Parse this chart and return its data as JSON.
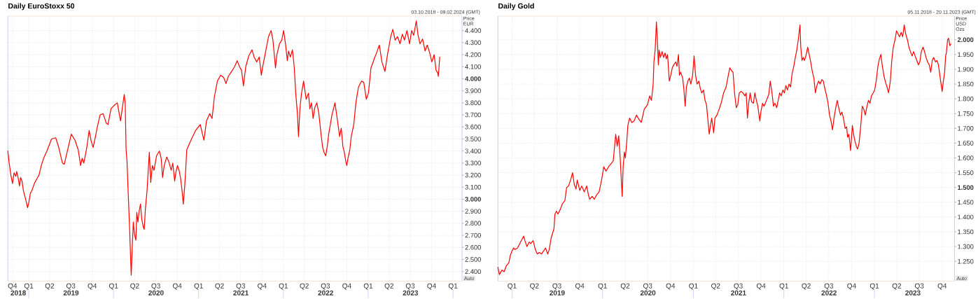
{
  "chart_data": [
    {
      "type": "line",
      "title": "Daily EuroStoxx 50",
      "subtitle": "03.10.2018 - 09.02.2024 (GMT)",
      "ylabel": "Price EUR",
      "annotations": [
        "Auto"
      ],
      "color": "#ff0000",
      "x": [
        "2018-10-03",
        "2018-10-08",
        "2018-10-16",
        "2018-10-23",
        "2018-10-30",
        "2018-11-06",
        "2018-11-10",
        "2018-11-16",
        "2018-11-22",
        "2018-11-27",
        "2018-12-03",
        "2018-12-09",
        "2018-12-16",
        "2018-12-27",
        "2019-01-01",
        "2019-01-08",
        "2019-01-14",
        "2019-01-25",
        "2019-02-05",
        "2019-02-14",
        "2019-02-24",
        "2019-03-06",
        "2019-03-20",
        "2019-04-09",
        "2019-04-27",
        "2019-05-10",
        "2019-05-26",
        "2019-06-03",
        "2019-06-15",
        "2019-07-03",
        "2019-07-19",
        "2019-08-02",
        "2019-08-12",
        "2019-08-19",
        "2019-08-26",
        "2019-09-07",
        "2019-09-18",
        "2019-09-27",
        "2019-10-05",
        "2019-10-15",
        "2019-10-22",
        "2019-11-04",
        "2019-11-17",
        "2019-12-01",
        "2019-12-08",
        "2019-12-21",
        "2020-01-04",
        "2020-01-17",
        "2020-01-31",
        "2020-02-16",
        "2020-02-20",
        "2020-02-24",
        "2020-02-28",
        "2020-03-04",
        "2020-03-10",
        "2020-03-14",
        "2020-03-17",
        "2020-03-21",
        "2020-03-26",
        "2020-03-31",
        "2020-04-06",
        "2020-04-10",
        "2020-04-15",
        "2020-04-20",
        "2020-04-26",
        "2020-05-01",
        "2020-05-08",
        "2020-05-12",
        "2020-05-17",
        "2020-05-24",
        "2020-06-03",
        "2020-06-09",
        "2020-06-16",
        "2020-06-23",
        "2020-07-04",
        "2020-07-16",
        "2020-07-24",
        "2020-07-30",
        "2020-08-06",
        "2020-08-17",
        "2020-08-26",
        "2020-09-05",
        "2020-09-12",
        "2020-09-20",
        "2020-09-25",
        "2020-10-02",
        "2020-10-09",
        "2020-10-15",
        "2020-10-22",
        "2020-10-27",
        "2020-11-02",
        "2020-11-07",
        "2020-11-11",
        "2020-11-29",
        "2020-12-19",
        "2021-01-08",
        "2021-01-24",
        "2021-02-04",
        "2021-02-18",
        "2021-02-28",
        "2021-03-10",
        "2021-03-23",
        "2021-04-06",
        "2021-04-19",
        "2021-04-29",
        "2021-05-09",
        "2021-05-23",
        "2021-06-05",
        "2021-06-16",
        "2021-06-26",
        "2021-07-05",
        "2021-07-13",
        "2021-07-23",
        "2021-08-05",
        "2021-08-19",
        "2021-08-28",
        "2021-09-08",
        "2021-09-19",
        "2021-09-28",
        "2021-10-05",
        "2021-10-18",
        "2021-10-29",
        "2021-11-09",
        "2021-11-17",
        "2021-11-28",
        "2021-12-04",
        "2021-12-15",
        "2021-12-25",
        "2022-01-02",
        "2022-01-10",
        "2022-01-18",
        "2022-01-23",
        "2022-01-31",
        "2022-02-09",
        "2022-02-17",
        "2022-02-23",
        "2022-03-02",
        "2022-03-07",
        "2022-03-13",
        "2022-03-20",
        "2022-03-29",
        "2022-04-09",
        "2022-04-19",
        "2022-04-25",
        "2022-05-02",
        "2022-05-09",
        "2022-05-16",
        "2022-05-25",
        "2022-06-02",
        "2022-06-12",
        "2022-06-19",
        "2022-06-25",
        "2022-07-02",
        "2022-07-09",
        "2022-07-15",
        "2022-07-29",
        "2022-08-11",
        "2022-08-22",
        "2022-08-31",
        "2022-09-07",
        "2022-09-14",
        "2022-09-20",
        "2022-09-27",
        "2022-10-01",
        "2022-10-06",
        "2022-10-14",
        "2022-10-20",
        "2022-10-31",
        "2022-11-09",
        "2022-11-20",
        "2022-12-03",
        "2022-12-13",
        "2022-12-24",
        "2023-01-02",
        "2023-01-13",
        "2023-01-26",
        "2023-02-09",
        "2023-02-18",
        "2023-03-01",
        "2023-03-14",
        "2023-03-25",
        "2023-04-08",
        "2023-04-17",
        "2023-04-27",
        "2023-05-07",
        "2023-05-18",
        "2023-05-28",
        "2023-06-06",
        "2023-06-17",
        "2023-06-28",
        "2023-07-07",
        "2023-07-16",
        "2023-07-27",
        "2023-08-03",
        "2023-08-12",
        "2023-08-23",
        "2023-09-03",
        "2023-09-12",
        "2023-09-22",
        "2023-10-02",
        "2023-10-12",
        "2023-10-20",
        "2023-10-27",
        "2023-10-30",
        "2023-11-05"
      ],
      "values": [
        3400,
        3310,
        3200,
        3130,
        3220,
        3190,
        3230,
        3180,
        3110,
        3180,
        3150,
        3070,
        3020,
        2930,
        2970,
        3050,
        3070,
        3130,
        3170,
        3200,
        3280,
        3340,
        3400,
        3500,
        3510,
        3430,
        3300,
        3290,
        3390,
        3540,
        3490,
        3410,
        3280,
        3340,
        3300,
        3420,
        3570,
        3480,
        3430,
        3520,
        3590,
        3700,
        3710,
        3630,
        3620,
        3750,
        3780,
        3800,
        3650,
        3870,
        3800,
        3410,
        3310,
        3050,
        2760,
        2530,
        2370,
        2580,
        2810,
        2710,
        2660,
        2890,
        2810,
        2900,
        2960,
        2840,
        2770,
        2750,
        2920,
        3070,
        3390,
        3140,
        3280,
        3240,
        3360,
        3400,
        3340,
        3180,
        3280,
        3350,
        3310,
        3240,
        3300,
        3150,
        3220,
        3280,
        3240,
        3180,
        3070,
        2960,
        3100,
        3260,
        3410,
        3490,
        3570,
        3620,
        3490,
        3650,
        3710,
        3670,
        3850,
        3980,
        4030,
        4010,
        3960,
        4020,
        4060,
        4100,
        4150,
        4100,
        4070,
        3940,
        4100,
        4190,
        4240,
        4180,
        4140,
        4180,
        4030,
        4110,
        4240,
        4350,
        4400,
        4320,
        4090,
        4200,
        4290,
        4320,
        4400,
        4290,
        4150,
        4230,
        4180,
        4240,
        4090,
        3880,
        3720,
        3520,
        3750,
        3880,
        3980,
        3830,
        3880,
        3750,
        3800,
        3670,
        3760,
        3800,
        3720,
        3540,
        3430,
        3390,
        3360,
        3440,
        3540,
        3700,
        3800,
        3650,
        3520,
        3590,
        3440,
        3390,
        3310,
        3280,
        3340,
        3410,
        3520,
        3620,
        3800,
        3930,
        3980,
        3970,
        3830,
        3880,
        4090,
        4160,
        4230,
        4280,
        4140,
        4060,
        4200,
        4350,
        4410,
        4320,
        4350,
        4290,
        4370,
        4320,
        4400,
        4290,
        4400,
        4360,
        4480,
        4370,
        4290,
        4330,
        4230,
        4280,
        4220,
        4140,
        4200,
        4070,
        4050,
        4020,
        4180
      ],
      "xlim": [
        "2018-10-03",
        "2024-02-09"
      ],
      "xticks": [
        {
          "value": "2018-10-23",
          "label": "Q4"
        },
        {
          "value": "2019-01-01",
          "label": "Q1"
        },
        {
          "value": "2019-04-01",
          "label": "Q2"
        },
        {
          "value": "2019-07-01",
          "label": "Q3"
        },
        {
          "value": "2019-10-01",
          "label": "Q4"
        },
        {
          "value": "2020-01-01",
          "label": "Q1"
        },
        {
          "value": "2020-04-01",
          "label": "Q2"
        },
        {
          "value": "2020-07-01",
          "label": "Q3"
        },
        {
          "value": "2020-10-01",
          "label": "Q4"
        },
        {
          "value": "2021-01-01",
          "label": "Q1"
        },
        {
          "value": "2021-04-01",
          "label": "Q2"
        },
        {
          "value": "2021-07-01",
          "label": "Q3"
        },
        {
          "value": "2021-10-01",
          "label": "Q4"
        },
        {
          "value": "2022-01-01",
          "label": "Q1"
        },
        {
          "value": "2022-04-01",
          "label": "Q2"
        },
        {
          "value": "2022-07-01",
          "label": "Q3"
        },
        {
          "value": "2022-10-01",
          "label": "Q4"
        },
        {
          "value": "2023-01-01",
          "label": "Q1"
        },
        {
          "value": "2023-04-01",
          "label": "Q2"
        },
        {
          "value": "2023-07-01",
          "label": "Q3"
        },
        {
          "value": "2023-10-01",
          "label": "Q4"
        },
        {
          "value": "2024-01-01",
          "label": "Q1"
        }
      ],
      "x2lim": [
        "2018-10-03",
        "2024-02-09"
      ],
      "x2ticks": [
        {
          "value": "2018-11-17",
          "label": "2018"
        },
        {
          "value": "2019-01-01",
          "label": null
        },
        {
          "value": "2019-07-02",
          "label": "2019"
        },
        {
          "value": "2020-01-01",
          "label": null
        },
        {
          "value": "2020-07-02",
          "label": "2020"
        },
        {
          "value": "2021-01-01",
          "label": null
        },
        {
          "value": "2021-07-02",
          "label": "2021"
        },
        {
          "value": "2022-01-01",
          "label": null
        },
        {
          "value": "2022-07-02",
          "label": "2022"
        },
        {
          "value": "2023-01-01",
          "label": null
        },
        {
          "value": "2023-07-02",
          "label": "2023"
        },
        {
          "value": "2024-01-01",
          "label": null
        }
      ],
      "ylim": [
        2320,
        4520
      ],
      "yticks": [
        {
          "value": 2400,
          "label": "2.400"
        },
        {
          "value": 2500,
          "label": "2.500"
        },
        {
          "value": 2600,
          "label": "2.600"
        },
        {
          "value": 2700,
          "label": "2.700"
        },
        {
          "value": 2800,
          "label": "2.800"
        },
        {
          "value": 2900,
          "label": "2.900"
        },
        {
          "value": 3000,
          "label": "**3.000**"
        },
        {
          "value": 3100,
          "label": "3.100"
        },
        {
          "value": 3200,
          "label": "3.200"
        },
        {
          "value": 3300,
          "label": "3.300"
        },
        {
          "value": 3400,
          "label": "3.400"
        },
        {
          "value": 3500,
          "label": "3.500"
        },
        {
          "value": 3600,
          "label": "3.600"
        },
        {
          "value": 3700,
          "label": "3.700"
        },
        {
          "value": 3800,
          "label": "3.800"
        },
        {
          "value": 3900,
          "label": "3.900"
        },
        {
          "value": 4000,
          "label": "**4.000**"
        },
        {
          "value": 4100,
          "label": "4.100"
        },
        {
          "value": 4200,
          "label": "4.200"
        },
        {
          "value": 4300,
          "label": "4.300"
        },
        {
          "value": 4400,
          "label": "4.400"
        }
      ],
      "grid": true
    },
    {
      "type": "line",
      "title": "Daily Gold",
      "subtitle": "05.11.2018 - 20.11.2023 (GMT)",
      "ylabel": "Price USD Ozs",
      "annotations": [
        "Auto"
      ],
      "color": "#ff0000",
      "x": [
        "2018-11-05",
        "2018-11-11",
        "2018-11-21",
        "2018-11-30",
        "2018-12-09",
        "2018-12-19",
        "2018-12-25",
        "2019-01-01",
        "2019-01-07",
        "2019-01-13",
        "2019-01-23",
        "2019-02-01",
        "2019-02-07",
        "2019-02-17",
        "2019-02-22",
        "2019-03-02",
        "2019-03-11",
        "2019-03-17",
        "2019-03-27",
        "2019-04-05",
        "2019-04-13",
        "2019-04-21",
        "2019-04-30",
        "2019-05-16",
        "2019-05-25",
        "2019-05-31",
        "2019-06-08",
        "2019-06-19",
        "2019-06-23",
        "2019-06-29",
        "2019-07-05",
        "2019-07-14",
        "2019-07-23",
        "2019-08-02",
        "2019-08-09",
        "2019-08-17",
        "2019-08-25",
        "2019-09-02",
        "2019-09-09",
        "2019-09-16",
        "2019-09-21",
        "2019-10-01",
        "2019-10-09",
        "2019-10-19",
        "2019-10-29",
        "2019-11-05",
        "2019-11-10",
        "2019-11-20",
        "2019-11-29",
        "2019-12-08",
        "2019-12-18",
        "2019-12-28",
        "2020-01-06",
        "2020-01-15",
        "2020-01-25",
        "2020-02-04",
        "2020-02-13",
        "2020-02-23",
        "2020-02-29",
        "2020-03-06",
        "2020-03-12",
        "2020-03-20",
        "2020-03-24",
        "2020-03-29",
        "2020-04-02",
        "2020-04-07",
        "2020-04-12",
        "2020-04-19",
        "2020-04-28",
        "2020-05-07",
        "2020-05-17",
        "2020-05-27",
        "2020-06-05",
        "2020-06-17",
        "2020-06-30",
        "2020-07-09",
        "2020-07-16",
        "2020-07-23",
        "2020-07-26",
        "2020-07-31",
        "2020-08-05",
        "2020-08-09",
        "2020-08-13",
        "2020-08-16",
        "2020-08-21",
        "2020-08-28",
        "2020-09-03",
        "2020-09-09",
        "2020-09-14",
        "2020-09-19",
        "2020-09-26",
        "2020-10-02",
        "2020-10-08",
        "2020-10-14",
        "2020-10-22",
        "2020-10-27",
        "2020-11-02",
        "2020-11-06",
        "2020-11-11",
        "2020-11-19",
        "2020-11-24",
        "2020-11-29",
        "2020-12-04",
        "2020-12-10",
        "2020-12-16",
        "2020-12-22",
        "2020-12-29",
        "2021-01-04",
        "2021-01-10",
        "2021-01-16",
        "2021-01-23",
        "2021-01-29",
        "2021-02-04",
        "2021-02-11",
        "2021-02-17",
        "2021-02-23",
        "2021-03-01",
        "2021-03-06",
        "2021-03-11",
        "2021-03-16",
        "2021-03-24",
        "2021-03-29",
        "2021-04-06",
        "2021-04-15",
        "2021-04-23",
        "2021-05-03",
        "2021-05-13",
        "2021-05-22",
        "2021-05-28",
        "2021-06-04",
        "2021-06-10",
        "2021-06-16",
        "2021-06-23",
        "2021-06-29",
        "2021-07-05",
        "2021-07-13",
        "2021-07-20",
        "2021-07-28",
        "2021-08-02",
        "2021-08-07",
        "2021-08-12",
        "2021-08-18",
        "2021-08-24",
        "2021-08-31",
        "2021-09-06",
        "2021-09-12",
        "2021-09-18",
        "2021-09-26",
        "2021-10-01",
        "2021-10-07",
        "2021-10-13",
        "2021-10-23",
        "2021-11-01",
        "2021-11-07",
        "2021-11-14",
        "2021-11-20",
        "2021-11-26",
        "2021-12-03",
        "2021-12-09",
        "2021-12-15",
        "2021-12-21",
        "2021-12-28",
        "2022-01-03",
        "2022-01-09",
        "2022-01-15",
        "2022-01-22",
        "2022-01-28",
        "2022-02-03",
        "2022-02-10",
        "2022-02-16",
        "2022-02-22",
        "2022-02-28",
        "2022-03-07",
        "2022-03-10",
        "2022-03-15",
        "2022-03-20",
        "2022-03-25",
        "2022-04-01",
        "2022-04-07",
        "2022-04-13",
        "2022-04-19",
        "2022-04-25",
        "2022-05-02",
        "2022-05-08",
        "2022-05-14",
        "2022-05-21",
        "2022-05-27",
        "2022-06-03",
        "2022-06-09",
        "2022-06-15",
        "2022-06-21",
        "2022-06-28",
        "2022-07-04",
        "2022-07-10",
        "2022-07-16",
        "2022-07-22",
        "2022-07-29",
        "2022-08-04",
        "2022-08-10",
        "2022-08-17",
        "2022-08-23",
        "2022-08-29",
        "2022-09-05",
        "2022-09-11",
        "2022-09-15",
        "2022-09-20",
        "2022-09-27",
        "2022-10-04",
        "2022-10-09",
        "2022-10-15",
        "2022-10-20",
        "2022-10-25",
        "2022-10-31",
        "2022-11-07",
        "2022-11-13",
        "2022-11-19",
        "2022-11-25",
        "2022-12-02",
        "2022-12-08",
        "2022-12-14",
        "2022-12-20",
        "2022-12-27",
        "2023-01-02",
        "2023-01-08",
        "2023-01-15",
        "2023-01-21",
        "2023-01-27",
        "2023-02-02",
        "2023-02-09",
        "2023-02-15",
        "2023-02-21",
        "2023-02-27",
        "2023-03-06",
        "2023-03-12",
        "2023-03-18",
        "2023-03-25",
        "2023-03-31",
        "2023-04-06",
        "2023-04-12",
        "2023-04-19",
        "2023-04-25",
        "2023-05-01",
        "2023-05-07",
        "2023-05-14",
        "2023-05-20",
        "2023-05-26",
        "2023-06-02",
        "2023-06-08",
        "2023-06-14",
        "2023-06-21",
        "2023-06-27",
        "2023-07-03",
        "2023-07-09",
        "2023-07-16",
        "2023-07-22",
        "2023-07-28",
        "2023-08-03",
        "2023-08-10",
        "2023-08-16",
        "2023-08-22",
        "2023-08-28",
        "2023-09-04",
        "2023-09-10",
        "2023-09-16",
        "2023-09-25",
        "2023-10-01",
        "2023-10-06",
        "2023-10-11",
        "2023-10-15",
        "2023-10-18",
        "2023-10-23",
        "2023-10-27",
        "2023-11-01",
        "2023-11-05"
      ],
      "values": [
        1230,
        1205,
        1220,
        1215,
        1235,
        1245,
        1270,
        1285,
        1295,
        1290,
        1295,
        1310,
        1320,
        1335,
        1320,
        1300,
        1315,
        1310,
        1320,
        1290,
        1275,
        1280,
        1275,
        1295,
        1275,
        1290,
        1330,
        1360,
        1410,
        1420,
        1410,
        1425,
        1445,
        1455,
        1500,
        1505,
        1525,
        1550,
        1510,
        1495,
        1525,
        1490,
        1505,
        1485,
        1505,
        1475,
        1460,
        1470,
        1460,
        1475,
        1485,
        1525,
        1570,
        1555,
        1570,
        1580,
        1590,
        1680,
        1640,
        1675,
        1600,
        1470,
        1570,
        1620,
        1600,
        1650,
        1710,
        1735,
        1720,
        1725,
        1745,
        1730,
        1720,
        1765,
        1780,
        1810,
        1795,
        1850,
        1925,
        1965,
        2060,
        2000,
        1915,
        1965,
        1940,
        1960,
        1940,
        1955,
        1935,
        1950,
        1860,
        1880,
        1905,
        1915,
        1925,
        1910,
        1950,
        1880,
        1890,
        1870,
        1830,
        1775,
        1840,
        1860,
        1870,
        1850,
        1880,
        1945,
        1880,
        1850,
        1860,
        1835,
        1820,
        1830,
        1795,
        1780,
        1725,
        1680,
        1710,
        1735,
        1685,
        1735,
        1745,
        1765,
        1785,
        1820,
        1840,
        1880,
        1905,
        1895,
        1890,
        1820,
        1770,
        1780,
        1820,
        1825,
        1820,
        1810,
        1820,
        1735,
        1785,
        1820,
        1790,
        1785,
        1820,
        1795,
        1775,
        1725,
        1760,
        1785,
        1775,
        1795,
        1815,
        1860,
        1820,
        1775,
        1785,
        1770,
        1795,
        1820,
        1810,
        1830,
        1820,
        1845,
        1830,
        1850,
        1840,
        1885,
        1910,
        1940,
        1965,
        2000,
        2050,
        1975,
        1930,
        1940,
        1930,
        1950,
        1975,
        1950,
        1925,
        1895,
        1870,
        1820,
        1845,
        1860,
        1850,
        1865,
        1860,
        1835,
        1815,
        1785,
        1745,
        1725,
        1695,
        1735,
        1770,
        1795,
        1770,
        1745,
        1755,
        1735,
        1700,
        1705,
        1670,
        1680,
        1625,
        1710,
        1680,
        1655,
        1640,
        1630,
        1650,
        1710,
        1775,
        1765,
        1745,
        1775,
        1795,
        1785,
        1810,
        1820,
        1830,
        1860,
        1910,
        1935,
        1950,
        1910,
        1875,
        1855,
        1840,
        1820,
        1860,
        1930,
        1975,
        2000,
        2030,
        2020,
        2010,
        2025,
        2010,
        2050,
        2020,
        2000,
        1975,
        1960,
        1945,
        1960,
        1945,
        1930,
        1915,
        1925,
        1960,
        1975,
        1960,
        1940,
        1925,
        1915,
        1890,
        1930,
        1940,
        1925,
        1930,
        1915,
        1860,
        1825,
        1860,
        1890,
        1945,
        1955,
        2000,
        2005,
        1980,
        1985
      ],
      "xlim": [
        "2018-11-05",
        "2023-11-20"
      ],
      "xticks": [
        {
          "value": "2019-01-01",
          "label": "Q1"
        },
        {
          "value": "2019-04-01",
          "label": "Q2"
        },
        {
          "value": "2019-07-01",
          "label": "Q3"
        },
        {
          "value": "2019-10-01",
          "label": "Q4"
        },
        {
          "value": "2020-01-01",
          "label": "Q1"
        },
        {
          "value": "2020-04-01",
          "label": "Q2"
        },
        {
          "value": "2020-07-01",
          "label": "Q3"
        },
        {
          "value": "2020-10-01",
          "label": "Q4"
        },
        {
          "value": "2021-01-01",
          "label": "Q1"
        },
        {
          "value": "2021-04-01",
          "label": "Q2"
        },
        {
          "value": "2021-07-01",
          "label": "Q3"
        },
        {
          "value": "2021-10-01",
          "label": "Q4"
        },
        {
          "value": "2022-01-01",
          "label": "Q1"
        },
        {
          "value": "2022-04-01",
          "label": "Q2"
        },
        {
          "value": "2022-07-01",
          "label": "Q3"
        },
        {
          "value": "2022-10-01",
          "label": "Q4"
        },
        {
          "value": "2023-01-01",
          "label": "Q1"
        },
        {
          "value": "2023-04-01",
          "label": "Q2"
        },
        {
          "value": "2023-07-01",
          "label": "Q3"
        },
        {
          "value": "2023-10-01",
          "label": "Q4"
        }
      ],
      "x2lim": [
        "2018-11-05",
        "2023-11-20"
      ],
      "x2ticks": [
        {
          "value": "2019-01-01",
          "label": null
        },
        {
          "value": "2019-07-02",
          "label": "2019"
        },
        {
          "value": "2020-01-01",
          "label": null
        },
        {
          "value": "2020-07-02",
          "label": "2020"
        },
        {
          "value": "2021-01-01",
          "label": null
        },
        {
          "value": "2021-07-02",
          "label": "2021"
        },
        {
          "value": "2022-01-01",
          "label": null
        },
        {
          "value": "2022-07-02",
          "label": "2022"
        },
        {
          "value": "2023-01-01",
          "label": null
        },
        {
          "value": "2023-06-05",
          "label": "2023"
        }
      ],
      "ylim": [
        1183,
        2080
      ],
      "yticks": [
        {
          "value": 1250,
          "label": "1.250"
        },
        {
          "value": 1300,
          "label": "1.300"
        },
        {
          "value": 1350,
          "label": "1.350"
        },
        {
          "value": 1400,
          "label": "1.400"
        },
        {
          "value": 1450,
          "label": "1.450"
        },
        {
          "value": 1500,
          "label": "**1.500**"
        },
        {
          "value": 1550,
          "label": "1.550"
        },
        {
          "value": 1600,
          "label": "1.600"
        },
        {
          "value": 1650,
          "label": "1.650"
        },
        {
          "value": 1700,
          "label": "1.700"
        },
        {
          "value": 1750,
          "label": "1.750"
        },
        {
          "value": 1800,
          "label": "1.800"
        },
        {
          "value": 1850,
          "label": "1.850"
        },
        {
          "value": 1900,
          "label": "1.900"
        },
        {
          "value": 1950,
          "label": "1.950"
        },
        {
          "value": 2000,
          "label": "**2.000**"
        }
      ],
      "grid": true
    }
  ]
}
